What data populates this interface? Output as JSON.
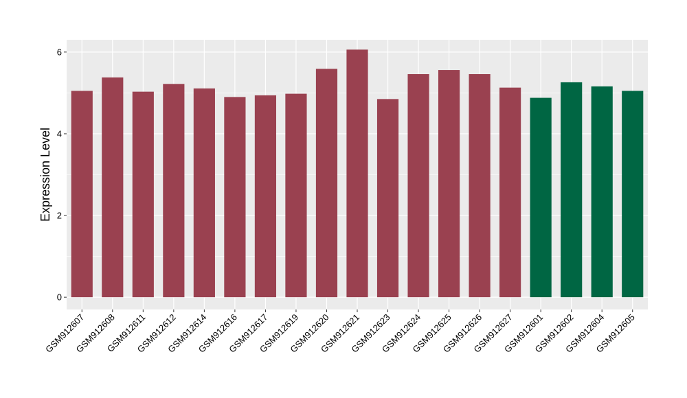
{
  "chart_data": {
    "type": "bar",
    "title": "",
    "xlabel": "",
    "ylabel": "Expression Level",
    "ylim": [
      -0.3,
      6.3
    ],
    "yticks": [
      0,
      2,
      4,
      6
    ],
    "grid": true,
    "legend": "none",
    "colors": {
      "panel_background": "#EBEBEB",
      "grid": "#FFFFFF",
      "group_a": "#9A4150",
      "group_b": "#006643"
    },
    "categories": [
      "GSM912607",
      "GSM912608",
      "GSM912611",
      "GSM912612",
      "GSM912614",
      "GSM912616",
      "GSM912617",
      "GSM912619",
      "GSM912620",
      "GSM912621",
      "GSM912623",
      "GSM912624",
      "GSM912625",
      "GSM912626",
      "GSM912627",
      "GSM912601",
      "GSM912602",
      "GSM912604",
      "GSM912605"
    ],
    "values": [
      5.05,
      5.38,
      5.03,
      5.22,
      5.11,
      4.9,
      4.94,
      4.98,
      5.59,
      6.06,
      4.85,
      5.46,
      5.56,
      5.46,
      5.13,
      4.88,
      5.26,
      5.16,
      5.05
    ],
    "bar_colors": [
      "#9A4150",
      "#9A4150",
      "#9A4150",
      "#9A4150",
      "#9A4150",
      "#9A4150",
      "#9A4150",
      "#9A4150",
      "#9A4150",
      "#9A4150",
      "#9A4150",
      "#9A4150",
      "#9A4150",
      "#9A4150",
      "#9A4150",
      "#006643",
      "#006643",
      "#006643",
      "#006643"
    ]
  }
}
